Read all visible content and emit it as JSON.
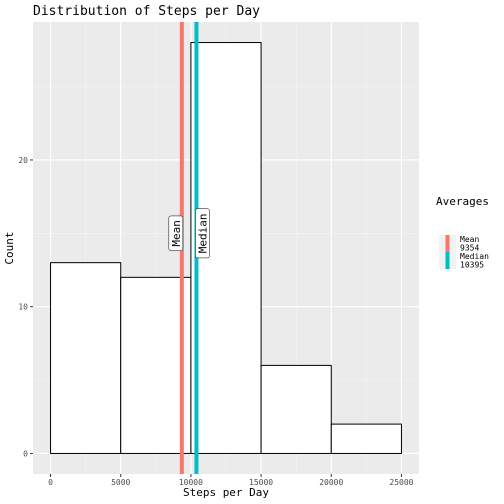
{
  "chart_data": {
    "type": "bar",
    "title": "Distribution of Steps per Day",
    "xlabel": "Steps per Day",
    "ylabel": "Count",
    "bins": [
      {
        "x0": 0,
        "x1": 5000,
        "count": 13
      },
      {
        "x0": 5000,
        "x1": 10000,
        "count": 12
      },
      {
        "x0": 10000,
        "x1": 15000,
        "count": 28
      },
      {
        "x0": 15000,
        "x1": 20000,
        "count": 6
      },
      {
        "x0": 20000,
        "x1": 25000,
        "count": 2
      }
    ],
    "xlim": [
      -1250,
      26250
    ],
    "ylim": [
      -1.4,
      29.4
    ],
    "xticks": [
      0,
      5000,
      10000,
      15000,
      20000,
      25000
    ],
    "xtick_labels": [
      "0",
      "5000",
      "10000",
      "15000",
      "20000",
      "25000"
    ],
    "yticks": [
      0,
      10,
      20
    ],
    "ytick_labels": [
      "0",
      "10",
      "20"
    ],
    "grid": true,
    "vlines": [
      {
        "name": "Mean",
        "value": 9354,
        "color": "#F8766D",
        "annotation": "Mean",
        "legend_label": "Mean\n9354"
      },
      {
        "name": "Median",
        "value": 10395,
        "color": "#00BFC4",
        "annotation": "Median",
        "legend_label": "Median\n10395"
      }
    ],
    "legend": {
      "title": "Averages",
      "placement": "right"
    },
    "colors": {
      "panel": "#EBEBEB",
      "grid_major": "#FFFFFF",
      "bar_fill": "#FFFFFF",
      "bar_stroke": "#000000",
      "text": "#4D4D4D"
    }
  }
}
